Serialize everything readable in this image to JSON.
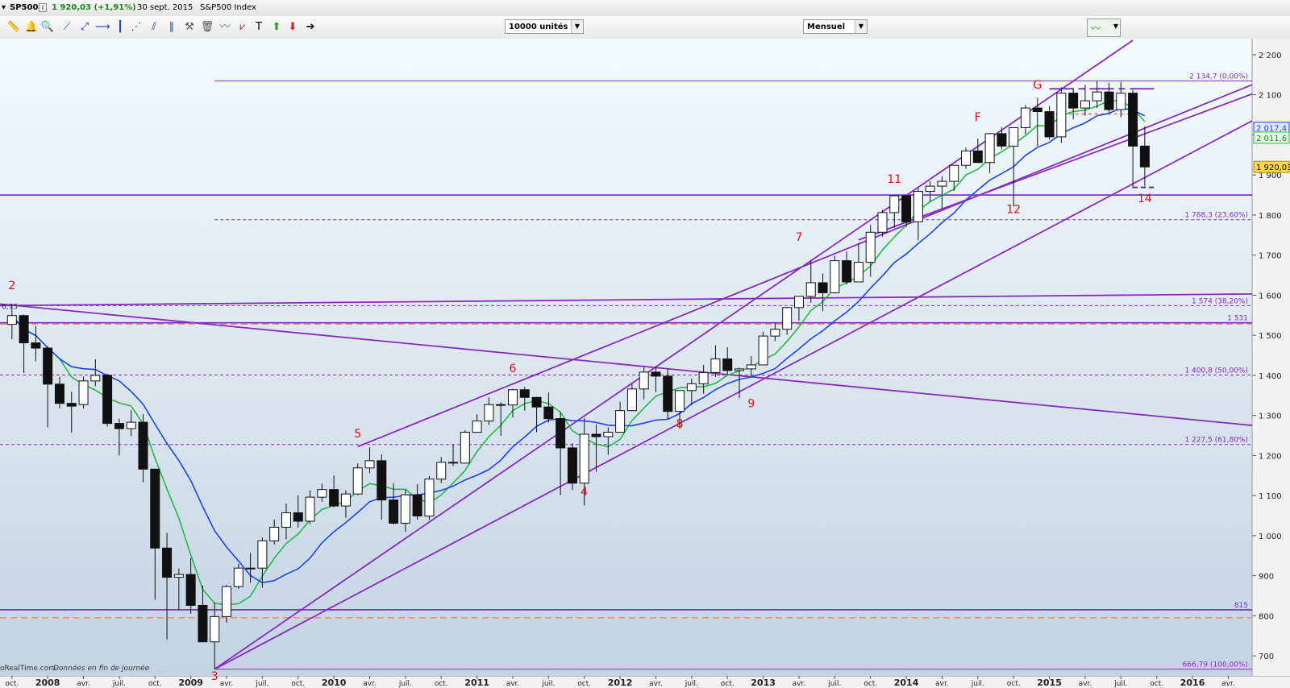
{
  "window": {
    "symbol": "SP500",
    "quote": "1 920,03 (+1,91%)",
    "date": "30 sept. 2015",
    "name": "S&P500 Index",
    "buttons": [
      "–",
      "□",
      "×"
    ]
  },
  "toolbar": {
    "icons": [
      "ruler-icon",
      "alarm-icon",
      "zoom-icon",
      "line-tool-icon",
      "trend-tool-icon",
      "hline-tool-icon",
      "vline-tool-icon",
      "fan-tool-icon",
      "channel-tool-icon",
      "parallel-tool-icon",
      "tools-icon",
      "trash-icon",
      "indicator-icon",
      "pattern-icon",
      "text-tool-icon",
      "buy-arrow-icon",
      "sell-arrow-icon",
      "next-arrow-icon"
    ],
    "glyphs": [
      "📏",
      "🔔",
      "🔍",
      "⟋",
      "⤢",
      "⟶",
      "┃",
      "⋰",
      "⫽",
      "∥",
      "⚒",
      "🗑",
      "〰",
      "⩗",
      "T",
      "⬆",
      "⬇",
      "➔"
    ],
    "units_select": "10000 unités",
    "period_select": "Mensuel"
  },
  "chart_data": {
    "type": "candlestick",
    "title": "S&P500 Index",
    "period": "Mensuel",
    "ylim": [
      650,
      2240
    ],
    "yticks": [
      700,
      800,
      900,
      1000,
      1100,
      1200,
      1300,
      1400,
      1500,
      1600,
      1700,
      1800,
      1900,
      2000,
      2100,
      2200
    ],
    "ytick_labels": [
      "700",
      "800",
      "900",
      "1 000",
      "1 100",
      "1 200",
      "1 300",
      "1 400",
      "1 500",
      "1 600",
      "1 700",
      "1 800",
      "1 900",
      "2 000",
      "2 100",
      "2 200"
    ],
    "x_start": "2007-09",
    "x_end": "2016-06",
    "xticks": [
      {
        "t": "2007-10",
        "label": "oct."
      },
      {
        "t": "2008-01",
        "label": "2008",
        "bold": true
      },
      {
        "t": "2008-04",
        "label": "avr."
      },
      {
        "t": "2008-07",
        "label": "juil."
      },
      {
        "t": "2008-10",
        "label": "oct."
      },
      {
        "t": "2009-01",
        "label": "2009",
        "bold": true
      },
      {
        "t": "2009-04",
        "label": "avr."
      },
      {
        "t": "2009-07",
        "label": "juil."
      },
      {
        "t": "2009-10",
        "label": "oct."
      },
      {
        "t": "2010-01",
        "label": "2010",
        "bold": true
      },
      {
        "t": "2010-04",
        "label": "avr."
      },
      {
        "t": "2010-07",
        "label": "juil."
      },
      {
        "t": "2010-10",
        "label": "oct."
      },
      {
        "t": "2011-01",
        "label": "2011",
        "bold": true
      },
      {
        "t": "2011-04",
        "label": "avr."
      },
      {
        "t": "2011-07",
        "label": "juil."
      },
      {
        "t": "2011-10",
        "label": "oct."
      },
      {
        "t": "2012-01",
        "label": "2012",
        "bold": true
      },
      {
        "t": "2012-04",
        "label": "avr."
      },
      {
        "t": "2012-07",
        "label": "juil."
      },
      {
        "t": "2012-10",
        "label": "oct."
      },
      {
        "t": "2013-01",
        "label": "2013",
        "bold": true
      },
      {
        "t": "2013-04",
        "label": "avr."
      },
      {
        "t": "2013-07",
        "label": "juil."
      },
      {
        "t": "2013-10",
        "label": "oct."
      },
      {
        "t": "2014-01",
        "label": "2014",
        "bold": true
      },
      {
        "t": "2014-04",
        "label": "avr."
      },
      {
        "t": "2014-07",
        "label": "juil."
      },
      {
        "t": "2014-10",
        "label": "oct."
      },
      {
        "t": "2015-01",
        "label": "2015",
        "bold": true
      },
      {
        "t": "2015-04",
        "label": "avr."
      },
      {
        "t": "2015-07",
        "label": "juil."
      },
      {
        "t": "2015-10",
        "label": "oct."
      },
      {
        "t": "2016-01",
        "label": "2016",
        "bold": true
      },
      {
        "t": "2016-04",
        "label": "avr."
      }
    ],
    "candles": [
      {
        "t": "2007-10",
        "o": 1527,
        "h": 1576,
        "l": 1490,
        "c": 1549
      },
      {
        "t": "2007-11",
        "o": 1549,
        "h": 1552,
        "l": 1406,
        "c": 1481
      },
      {
        "t": "2007-12",
        "o": 1481,
        "h": 1523,
        "l": 1435,
        "c": 1468
      },
      {
        "t": "2008-01",
        "o": 1468,
        "h": 1472,
        "l": 1270,
        "c": 1378
      },
      {
        "t": "2008-02",
        "o": 1378,
        "h": 1396,
        "l": 1317,
        "c": 1330
      },
      {
        "t": "2008-03",
        "o": 1330,
        "h": 1359,
        "l": 1257,
        "c": 1323
      },
      {
        "t": "2008-04",
        "o": 1327,
        "h": 1397,
        "l": 1317,
        "c": 1386
      },
      {
        "t": "2008-05",
        "o": 1386,
        "h": 1440,
        "l": 1373,
        "c": 1400
      },
      {
        "t": "2008-06",
        "o": 1400,
        "h": 1404,
        "l": 1272,
        "c": 1280
      },
      {
        "t": "2008-07",
        "o": 1280,
        "h": 1292,
        "l": 1200,
        "c": 1267
      },
      {
        "t": "2008-08",
        "o": 1267,
        "h": 1313,
        "l": 1248,
        "c": 1283
      },
      {
        "t": "2008-09",
        "o": 1283,
        "h": 1303,
        "l": 1133,
        "c": 1166
      },
      {
        "t": "2008-10",
        "o": 1166,
        "h": 1167,
        "l": 840,
        "c": 969
      },
      {
        "t": "2008-11",
        "o": 969,
        "h": 1007,
        "l": 741,
        "c": 896
      },
      {
        "t": "2008-12",
        "o": 896,
        "h": 918,
        "l": 815,
        "c": 903
      },
      {
        "t": "2009-01",
        "o": 903,
        "h": 944,
        "l": 805,
        "c": 826
      },
      {
        "t": "2009-02",
        "o": 826,
        "h": 876,
        "l": 735,
        "c": 735
      },
      {
        "t": "2009-03",
        "o": 735,
        "h": 833,
        "l": 667,
        "c": 798
      },
      {
        "t": "2009-04",
        "o": 798,
        "h": 877,
        "l": 783,
        "c": 873
      },
      {
        "t": "2009-05",
        "o": 873,
        "h": 930,
        "l": 867,
        "c": 919
      },
      {
        "t": "2009-06",
        "o": 919,
        "h": 957,
        "l": 882,
        "c": 919
      },
      {
        "t": "2009-07",
        "o": 919,
        "h": 996,
        "l": 870,
        "c": 987
      },
      {
        "t": "2009-08",
        "o": 987,
        "h": 1040,
        "l": 978,
        "c": 1021
      },
      {
        "t": "2009-09",
        "o": 1021,
        "h": 1080,
        "l": 991,
        "c": 1057
      },
      {
        "t": "2009-10",
        "o": 1057,
        "h": 1101,
        "l": 1020,
        "c": 1036
      },
      {
        "t": "2009-11",
        "o": 1036,
        "h": 1113,
        "l": 1029,
        "c": 1096
      },
      {
        "t": "2009-12",
        "o": 1096,
        "h": 1130,
        "l": 1085,
        "c": 1115
      },
      {
        "t": "2010-01",
        "o": 1115,
        "h": 1150,
        "l": 1071,
        "c": 1074
      },
      {
        "t": "2010-02",
        "o": 1074,
        "h": 1113,
        "l": 1045,
        "c": 1104
      },
      {
        "t": "2010-03",
        "o": 1104,
        "h": 1180,
        "l": 1101,
        "c": 1169
      },
      {
        "t": "2010-04",
        "o": 1169,
        "h": 1220,
        "l": 1156,
        "c": 1187
      },
      {
        "t": "2010-05",
        "o": 1187,
        "h": 1203,
        "l": 1040,
        "c": 1089
      },
      {
        "t": "2010-06",
        "o": 1089,
        "h": 1131,
        "l": 1028,
        "c": 1031
      },
      {
        "t": "2010-07",
        "o": 1031,
        "h": 1115,
        "l": 1010,
        "c": 1102
      },
      {
        "t": "2010-08",
        "o": 1102,
        "h": 1129,
        "l": 1040,
        "c": 1049
      },
      {
        "t": "2010-09",
        "o": 1049,
        "h": 1149,
        "l": 1039,
        "c": 1141
      },
      {
        "t": "2010-10",
        "o": 1141,
        "h": 1196,
        "l": 1131,
        "c": 1183
      },
      {
        "t": "2010-11",
        "o": 1183,
        "h": 1227,
        "l": 1173,
        "c": 1181
      },
      {
        "t": "2010-12",
        "o": 1181,
        "h": 1263,
        "l": 1180,
        "c": 1258
      },
      {
        "t": "2011-01",
        "o": 1258,
        "h": 1303,
        "l": 1257,
        "c": 1286
      },
      {
        "t": "2011-02",
        "o": 1286,
        "h": 1345,
        "l": 1276,
        "c": 1327
      },
      {
        "t": "2011-03",
        "o": 1327,
        "h": 1333,
        "l": 1249,
        "c": 1326
      },
      {
        "t": "2011-04",
        "o": 1326,
        "h": 1366,
        "l": 1295,
        "c": 1364
      },
      {
        "t": "2011-05",
        "o": 1364,
        "h": 1371,
        "l": 1312,
        "c": 1345
      },
      {
        "t": "2011-06",
        "o": 1345,
        "h": 1346,
        "l": 1258,
        "c": 1321
      },
      {
        "t": "2011-07",
        "o": 1321,
        "h": 1357,
        "l": 1282,
        "c": 1292
      },
      {
        "t": "2011-08",
        "o": 1292,
        "h": 1308,
        "l": 1101,
        "c": 1219
      },
      {
        "t": "2011-09",
        "o": 1219,
        "h": 1230,
        "l": 1114,
        "c": 1131
      },
      {
        "t": "2011-10",
        "o": 1131,
        "h": 1293,
        "l": 1075,
        "c": 1253
      },
      {
        "t": "2011-11",
        "o": 1253,
        "h": 1277,
        "l": 1159,
        "c": 1247
      },
      {
        "t": "2011-12",
        "o": 1247,
        "h": 1270,
        "l": 1202,
        "c": 1258
      },
      {
        "t": "2012-01",
        "o": 1258,
        "h": 1334,
        "l": 1258,
        "c": 1312
      },
      {
        "t": "2012-02",
        "o": 1312,
        "h": 1378,
        "l": 1311,
        "c": 1366
      },
      {
        "t": "2012-03",
        "o": 1366,
        "h": 1420,
        "l": 1340,
        "c": 1408
      },
      {
        "t": "2012-04",
        "o": 1408,
        "h": 1422,
        "l": 1358,
        "c": 1398
      },
      {
        "t": "2012-05",
        "o": 1398,
        "h": 1415,
        "l": 1291,
        "c": 1310
      },
      {
        "t": "2012-06",
        "o": 1310,
        "h": 1363,
        "l": 1267,
        "c": 1362
      },
      {
        "t": "2012-07",
        "o": 1362,
        "h": 1392,
        "l": 1325,
        "c": 1379
      },
      {
        "t": "2012-08",
        "o": 1379,
        "h": 1426,
        "l": 1354,
        "c": 1407
      },
      {
        "t": "2012-09",
        "o": 1407,
        "h": 1475,
        "l": 1396,
        "c": 1441
      },
      {
        "t": "2012-10",
        "o": 1441,
        "h": 1470,
        "l": 1403,
        "c": 1412
      },
      {
        "t": "2012-11",
        "o": 1412,
        "h": 1419,
        "l": 1343,
        "c": 1416
      },
      {
        "t": "2012-12",
        "o": 1416,
        "h": 1448,
        "l": 1398,
        "c": 1426
      },
      {
        "t": "2013-01",
        "o": 1426,
        "h": 1509,
        "l": 1426,
        "c": 1498
      },
      {
        "t": "2013-02",
        "o": 1498,
        "h": 1531,
        "l": 1485,
        "c": 1515
      },
      {
        "t": "2013-03",
        "o": 1515,
        "h": 1570,
        "l": 1501,
        "c": 1569
      },
      {
        "t": "2013-04",
        "o": 1569,
        "h": 1597,
        "l": 1536,
        "c": 1597
      },
      {
        "t": "2013-05",
        "o": 1597,
        "h": 1687,
        "l": 1581,
        "c": 1631
      },
      {
        "t": "2013-06",
        "o": 1631,
        "h": 1654,
        "l": 1560,
        "c": 1606
      },
      {
        "t": "2013-07",
        "o": 1606,
        "h": 1698,
        "l": 1604,
        "c": 1686
      },
      {
        "t": "2013-08",
        "o": 1686,
        "h": 1709,
        "l": 1627,
        "c": 1633
      },
      {
        "t": "2013-09",
        "o": 1633,
        "h": 1730,
        "l": 1633,
        "c": 1682
      },
      {
        "t": "2013-10",
        "o": 1682,
        "h": 1775,
        "l": 1646,
        "c": 1757
      },
      {
        "t": "2013-11",
        "o": 1757,
        "h": 1813,
        "l": 1746,
        "c": 1806
      },
      {
        "t": "2013-12",
        "o": 1806,
        "h": 1849,
        "l": 1768,
        "c": 1848
      },
      {
        "t": "2014-01",
        "o": 1848,
        "h": 1850,
        "l": 1770,
        "c": 1783
      },
      {
        "t": "2014-02",
        "o": 1783,
        "h": 1867,
        "l": 1737,
        "c": 1859
      },
      {
        "t": "2014-03",
        "o": 1859,
        "h": 1884,
        "l": 1834,
        "c": 1872
      },
      {
        "t": "2014-04",
        "o": 1872,
        "h": 1897,
        "l": 1814,
        "c": 1884
      },
      {
        "t": "2014-05",
        "o": 1884,
        "h": 1924,
        "l": 1860,
        "c": 1924
      },
      {
        "t": "2014-06",
        "o": 1924,
        "h": 1968,
        "l": 1915,
        "c": 1960
      },
      {
        "t": "2014-07",
        "o": 1960,
        "h": 1991,
        "l": 1930,
        "c": 1931
      },
      {
        "t": "2014-08",
        "o": 1931,
        "h": 2005,
        "l": 1905,
        "c": 2003
      },
      {
        "t": "2014-09",
        "o": 2003,
        "h": 2019,
        "l": 1964,
        "c": 1972
      },
      {
        "t": "2014-10",
        "o": 1972,
        "h": 2018,
        "l": 1821,
        "c": 2018
      },
      {
        "t": "2014-11",
        "o": 2018,
        "h": 2075,
        "l": 2001,
        "c": 2067
      },
      {
        "t": "2014-12",
        "o": 2067,
        "h": 2093,
        "l": 1972,
        "c": 2058
      },
      {
        "t": "2015-01",
        "o": 2058,
        "h": 2072,
        "l": 1988,
        "c": 1995
      },
      {
        "t": "2015-02",
        "o": 1995,
        "h": 2119,
        "l": 1980,
        "c": 2104
      },
      {
        "t": "2015-03",
        "o": 2104,
        "h": 2117,
        "l": 2039,
        "c": 2067
      },
      {
        "t": "2015-04",
        "o": 2067,
        "h": 2125,
        "l": 2048,
        "c": 2085
      },
      {
        "t": "2015-05",
        "o": 2085,
        "h": 2134,
        "l": 2067,
        "c": 2107
      },
      {
        "t": "2015-06",
        "o": 2107,
        "h": 2130,
        "l": 2056,
        "c": 2063
      },
      {
        "t": "2015-07",
        "o": 2063,
        "h": 2132,
        "l": 2044,
        "c": 2104
      },
      {
        "t": "2015-08",
        "o": 2104,
        "h": 2112,
        "l": 1867,
        "c": 1972
      },
      {
        "t": "2015-09",
        "o": 1972,
        "h": 2021,
        "l": 1872,
        "c": 1920
      }
    ],
    "moving_averages": [
      {
        "name": "MA1",
        "color": "#22bb44",
        "period": 5,
        "last_value": "2 011,6"
      },
      {
        "name": "MA2",
        "color": "#1a44ee",
        "period": 10,
        "last_value": "2 017,4"
      }
    ],
    "levels": [
      {
        "value": 2134.7,
        "label": "2 134,7 (0,00%)",
        "style": "solid",
        "color": "#8a2bbf"
      },
      {
        "value": 1788.3,
        "label": "1 788,3 (23,60%)",
        "style": "dashed",
        "color": "#8a2bbf"
      },
      {
        "value": 1574,
        "label": "1 574 (38,20%)",
        "style": "dashed",
        "color": "#8a2bbf"
      },
      {
        "value": 1400.8,
        "label": "1 400,8 (50,00%)",
        "style": "dashed",
        "color": "#8a2bbf"
      },
      {
        "value": 1227.5,
        "label": "1 227,5 (61,80%)",
        "style": "dashed",
        "color": "#8a2bbf"
      },
      {
        "value": 666.79,
        "label": "666,79 (100,00%)",
        "style": "solid",
        "color": "#8a2bbf"
      },
      {
        "value": 1531,
        "label": "1 531",
        "style": "solid",
        "color": "#7a2bbf",
        "thick": true
      },
      {
        "value": 815,
        "label": "815",
        "style": "solid",
        "color": "#7a2bbf",
        "thick": true
      },
      {
        "value": 1850,
        "label": "",
        "style": "solid",
        "color": "#7a2bbf",
        "thick": true
      },
      {
        "value": 1528,
        "label": "",
        "style": "dashed",
        "color": "#ff6a2a"
      },
      {
        "value": 795,
        "label": "",
        "style": "dashed",
        "color": "#ff6a2a"
      }
    ],
    "trendlines": [
      {
        "from": {
          "t": "2007-09",
          "v": 1578
        },
        "to": {
          "t": "2016-06",
          "v": 1275
        }
      },
      {
        "from": {
          "t": "2007-09",
          "v": 1574
        },
        "to": {
          "t": "2016-06",
          "v": 1603
        }
      },
      {
        "from": {
          "t": "2009-03",
          "v": 667
        },
        "to": {
          "t": "2015-08",
          "v": 2236
        }
      },
      {
        "from": {
          "t": "2009-03",
          "v": 667
        },
        "to": {
          "t": "2016-06",
          "v": 2035
        }
      },
      {
        "from": {
          "t": "2010-03",
          "v": 1222
        },
        "to": {
          "t": "2016-06",
          "v": 2125
        }
      },
      {
        "from": {
          "t": "2013-09",
          "v": 1738
        },
        "to": {
          "t": "2016-06",
          "v": 2102
        }
      }
    ],
    "waves": [
      {
        "label": "2",
        "t": "2007-10",
        "v": 1615
      },
      {
        "label": "3",
        "t": "2009-03",
        "v": 640
      },
      {
        "label": "4",
        "t": "2011-10",
        "v": 1100
      },
      {
        "label": "5",
        "t": "2010-03",
        "v": 1245
      },
      {
        "label": "6",
        "t": "2011-04",
        "v": 1408
      },
      {
        "label": "7",
        "t": "2013-04",
        "v": 1735
      },
      {
        "label": "8",
        "t": "2012-06",
        "v": 1270
      },
      {
        "label": "9",
        "t": "2012-12",
        "v": 1320
      },
      {
        "label": "11",
        "t": "2013-12",
        "v": 1880
      },
      {
        "label": "12",
        "t": "2014-10",
        "v": 1805
      },
      {
        "label": "14",
        "t": "2015-09",
        "v": 1832
      },
      {
        "label": "F",
        "t": "2014-07",
        "v": 2035
      },
      {
        "label": "G",
        "t": "2014-12",
        "v": 2115
      }
    ],
    "last_price_label": "1 920,03",
    "left_price_label": "6,75",
    "top_right_marks": {
      "resistance": 2115,
      "support": 1869,
      "red_dashed": 2052
    }
  },
  "footer": {
    "source": "oRealTime.com",
    "note": "Données en fin de journée"
  }
}
